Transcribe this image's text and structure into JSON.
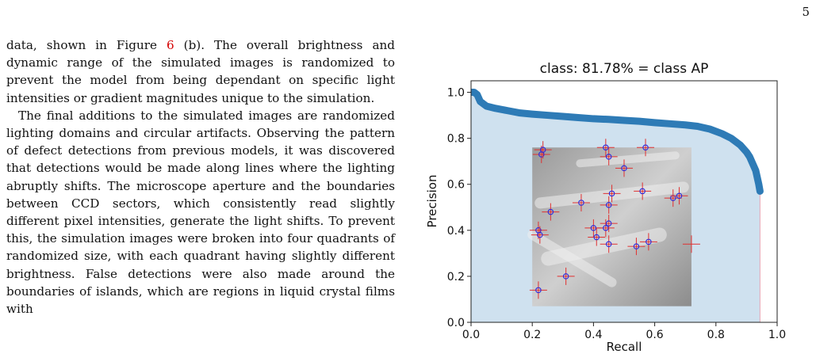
{
  "page": {
    "number": "5"
  },
  "paragraphs": {
    "p1": {
      "pre": "data, shown in Figure ",
      "ref": "6",
      "post": " (b). The overall brightness and dynamic range of the simulated images is randomized to prevent the model from being dependant on specific light intensities or gradient magnitudes unique to the simulation."
    },
    "p2": "The final additions to the simulated images are randomized lighting domains and circular artifacts. Observing the pattern of defect detections from previous models, it was discovered that detections would be made along lines where the lighting abruptly shifts. The microscope aperture and the boundaries between CCD sectors, which consistently read slightly different pixel intensities, generate the light shifts. To prevent this, the simulation images were broken into four quadrants of randomized size, with each quadrant having slightly different brightness. False detections were also made around the boundaries of islands, which are regions in liquid crystal films with"
  },
  "chart_data": {
    "type": "area",
    "title": "class: 81.78% = class AP",
    "xlabel": "Recall",
    "ylabel": "Precision",
    "xlim": [
      0.0,
      1.0
    ],
    "ylim": [
      0.0,
      1.05
    ],
    "xticks": [
      "0.0",
      "0.2",
      "0.4",
      "0.6",
      "0.8",
      "1.0"
    ],
    "yticks": [
      "0.0",
      "0.2",
      "0.4",
      "0.6",
      "0.8",
      "1.0"
    ],
    "grid": false,
    "colors": {
      "line": "#2e7bb6",
      "fill": "#cfe1ef",
      "marker_cross": "#e03030",
      "marker_circle": "#2a2ae0"
    },
    "series": [
      {
        "x": [
          0.0,
          0.01,
          0.02,
          0.03,
          0.05,
          0.08,
          0.12,
          0.16,
          0.2,
          0.25,
          0.3,
          0.35,
          0.4,
          0.45,
          0.5,
          0.55,
          0.6,
          0.65,
          0.7,
          0.74,
          0.78,
          0.82,
          0.85,
          0.88,
          0.9,
          0.91,
          0.92,
          0.93,
          0.935,
          0.94,
          0.944
        ],
        "y": [
          1.0,
          1.0,
          0.99,
          0.96,
          0.94,
          0.93,
          0.92,
          0.91,
          0.905,
          0.9,
          0.895,
          0.89,
          0.885,
          0.882,
          0.878,
          0.874,
          0.868,
          0.863,
          0.858,
          0.852,
          0.84,
          0.82,
          0.8,
          0.77,
          0.74,
          0.72,
          0.69,
          0.66,
          0.63,
          0.6,
          0.57
        ]
      }
    ],
    "inset": {
      "description_icon": "defect-detection-micrograph",
      "extent": {
        "x": [
          0.2,
          0.72
        ],
        "y": [
          0.07,
          0.76
        ]
      },
      "detections": [
        {
          "x": 0.23,
          "y": 0.73,
          "circle": true
        },
        {
          "x": 0.235,
          "y": 0.75,
          "circle": true
        },
        {
          "x": 0.44,
          "y": 0.76,
          "circle": true
        },
        {
          "x": 0.45,
          "y": 0.72,
          "circle": true
        },
        {
          "x": 0.57,
          "y": 0.76,
          "circle": true
        },
        {
          "x": 0.5,
          "y": 0.67,
          "circle": true
        },
        {
          "x": 0.26,
          "y": 0.48,
          "circle": true
        },
        {
          "x": 0.36,
          "y": 0.52,
          "circle": true
        },
        {
          "x": 0.45,
          "y": 0.51,
          "circle": true
        },
        {
          "x": 0.46,
          "y": 0.56,
          "circle": true
        },
        {
          "x": 0.56,
          "y": 0.57,
          "circle": true
        },
        {
          "x": 0.66,
          "y": 0.54,
          "circle": true
        },
        {
          "x": 0.68,
          "y": 0.55,
          "circle": true
        },
        {
          "x": 0.22,
          "y": 0.4,
          "circle": true
        },
        {
          "x": 0.225,
          "y": 0.38,
          "circle": true
        },
        {
          "x": 0.4,
          "y": 0.41,
          "circle": true
        },
        {
          "x": 0.41,
          "y": 0.37,
          "circle": true
        },
        {
          "x": 0.44,
          "y": 0.41,
          "circle": true
        },
        {
          "x": 0.45,
          "y": 0.43,
          "circle": true
        },
        {
          "x": 0.45,
          "y": 0.34,
          "circle": true
        },
        {
          "x": 0.54,
          "y": 0.33,
          "circle": true
        },
        {
          "x": 0.58,
          "y": 0.35,
          "circle": true
        },
        {
          "x": 0.72,
          "y": 0.34,
          "circle": false
        },
        {
          "x": 0.31,
          "y": 0.2,
          "circle": true
        },
        {
          "x": 0.22,
          "y": 0.14,
          "circle": true
        }
      ]
    }
  }
}
